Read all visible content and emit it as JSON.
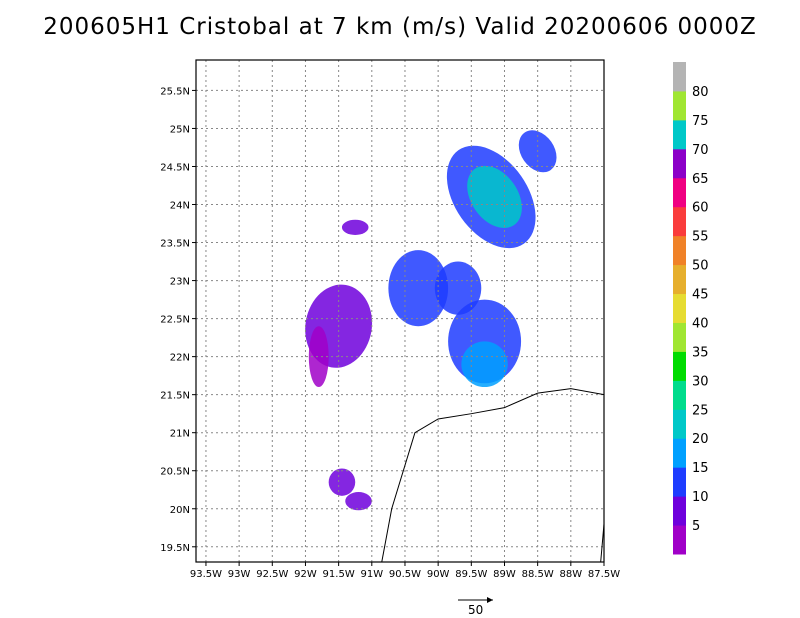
{
  "title": "200605H1 Cristobal at 7 km (m/s) Valid 20200606 0000Z",
  "chart_data": {
    "type": "heatmap",
    "title": "200605H1 Cristobal at 7 km (m/s) Valid 20200606 0000Z",
    "xlim": [
      -93.65,
      -87.5
    ],
    "ylim": [
      19.3,
      25.9
    ],
    "x_ticks": [
      -93.5,
      -93,
      -92.5,
      -92,
      -91.5,
      -91,
      -90.5,
      -90,
      -89.5,
      -89,
      -88.5,
      -88,
      -87.5
    ],
    "x_tick_labels": [
      "93.5W",
      "93W",
      "92.5W",
      "92W",
      "91.5W",
      "91W",
      "90.5W",
      "90W",
      "89.5W",
      "89W",
      "88.5W",
      "88W",
      "87.5W"
    ],
    "y_ticks": [
      19.5,
      20,
      20.5,
      21,
      21.5,
      22,
      22.5,
      23,
      23.5,
      24,
      24.5,
      25,
      25.5
    ],
    "y_tick_labels": [
      "19.5N",
      "20N",
      "20.5N",
      "21N",
      "21.5N",
      "22N",
      "22.5N",
      "23N",
      "23.5N",
      "24N",
      "24.5N",
      "25N",
      "25.5N"
    ],
    "grid": true,
    "coastline": [
      [
        -90.85,
        19.3
      ],
      [
        -90.7,
        20.0
      ],
      [
        -90.35,
        21.0
      ],
      [
        -90.0,
        21.18
      ],
      [
        -89.5,
        21.25
      ],
      [
        -89.0,
        21.33
      ],
      [
        -88.5,
        21.52
      ],
      [
        -88.0,
        21.58
      ],
      [
        -87.5,
        21.5
      ]
    ],
    "coastline2": [
      [
        -87.55,
        19.3
      ],
      [
        -87.5,
        19.8
      ]
    ],
    "colorbar": {
      "labels": [
        "5",
        "10",
        "15",
        "20",
        "25",
        "30",
        "35",
        "40",
        "45",
        "50",
        "55",
        "60",
        "65",
        "70",
        "75",
        "80"
      ],
      "colors": [
        "#a000c8",
        "#6e00dc",
        "#1e3cff",
        "#00a0ff",
        "#00c8c8",
        "#00dc8c",
        "#00dc00",
        "#a0e632",
        "#e6dc32",
        "#e6af2d",
        "#f08228",
        "#fa3c3c",
        "#f00082",
        "#8c00c8",
        "#00c8c8",
        "#a0e632",
        "#b4b4b4"
      ]
    },
    "reference_vector": {
      "label": "50",
      "value": 50
    },
    "regions": [
      {
        "cx": -89.2,
        "cy": 24.1,
        "rx": 0.55,
        "ry": 0.75,
        "rot": -35,
        "color": "#1e3cff"
      },
      {
        "cx": -89.15,
        "cy": 24.1,
        "rx": 0.35,
        "ry": 0.45,
        "rot": -35,
        "color": "#00c8c8"
      },
      {
        "cx": -88.5,
        "cy": 24.7,
        "rx": 0.25,
        "ry": 0.3,
        "rot": -35,
        "color": "#1e3cff"
      },
      {
        "cx": -89.3,
        "cy": 22.2,
        "rx": 0.55,
        "ry": 0.55,
        "rot": 0,
        "color": "#1e3cff"
      },
      {
        "cx": -89.3,
        "cy": 21.9,
        "rx": 0.35,
        "ry": 0.3,
        "rot": 0,
        "color": "#00a0ff"
      },
      {
        "cx": -90.3,
        "cy": 22.9,
        "rx": 0.45,
        "ry": 0.5,
        "rot": 0,
        "color": "#1e3cff"
      },
      {
        "cx": -89.7,
        "cy": 22.9,
        "rx": 0.35,
        "ry": 0.35,
        "rot": 0,
        "color": "#1e3cff"
      },
      {
        "cx": -91.5,
        "cy": 22.4,
        "rx": 0.5,
        "ry": 0.55,
        "rot": 10,
        "color": "#6e00dc"
      },
      {
        "cx": -91.8,
        "cy": 22.0,
        "rx": 0.15,
        "ry": 0.4,
        "rot": 0,
        "color": "#a000c8"
      },
      {
        "cx": -91.45,
        "cy": 20.35,
        "rx": 0.2,
        "ry": 0.18,
        "rot": 0,
        "color": "#6e00dc"
      },
      {
        "cx": -91.2,
        "cy": 20.1,
        "rx": 0.2,
        "ry": 0.12,
        "rot": 0,
        "color": "#6e00dc"
      },
      {
        "cx": -91.25,
        "cy": 23.7,
        "rx": 0.2,
        "ry": 0.1,
        "rot": 0,
        "color": "#6e00dc"
      }
    ]
  }
}
